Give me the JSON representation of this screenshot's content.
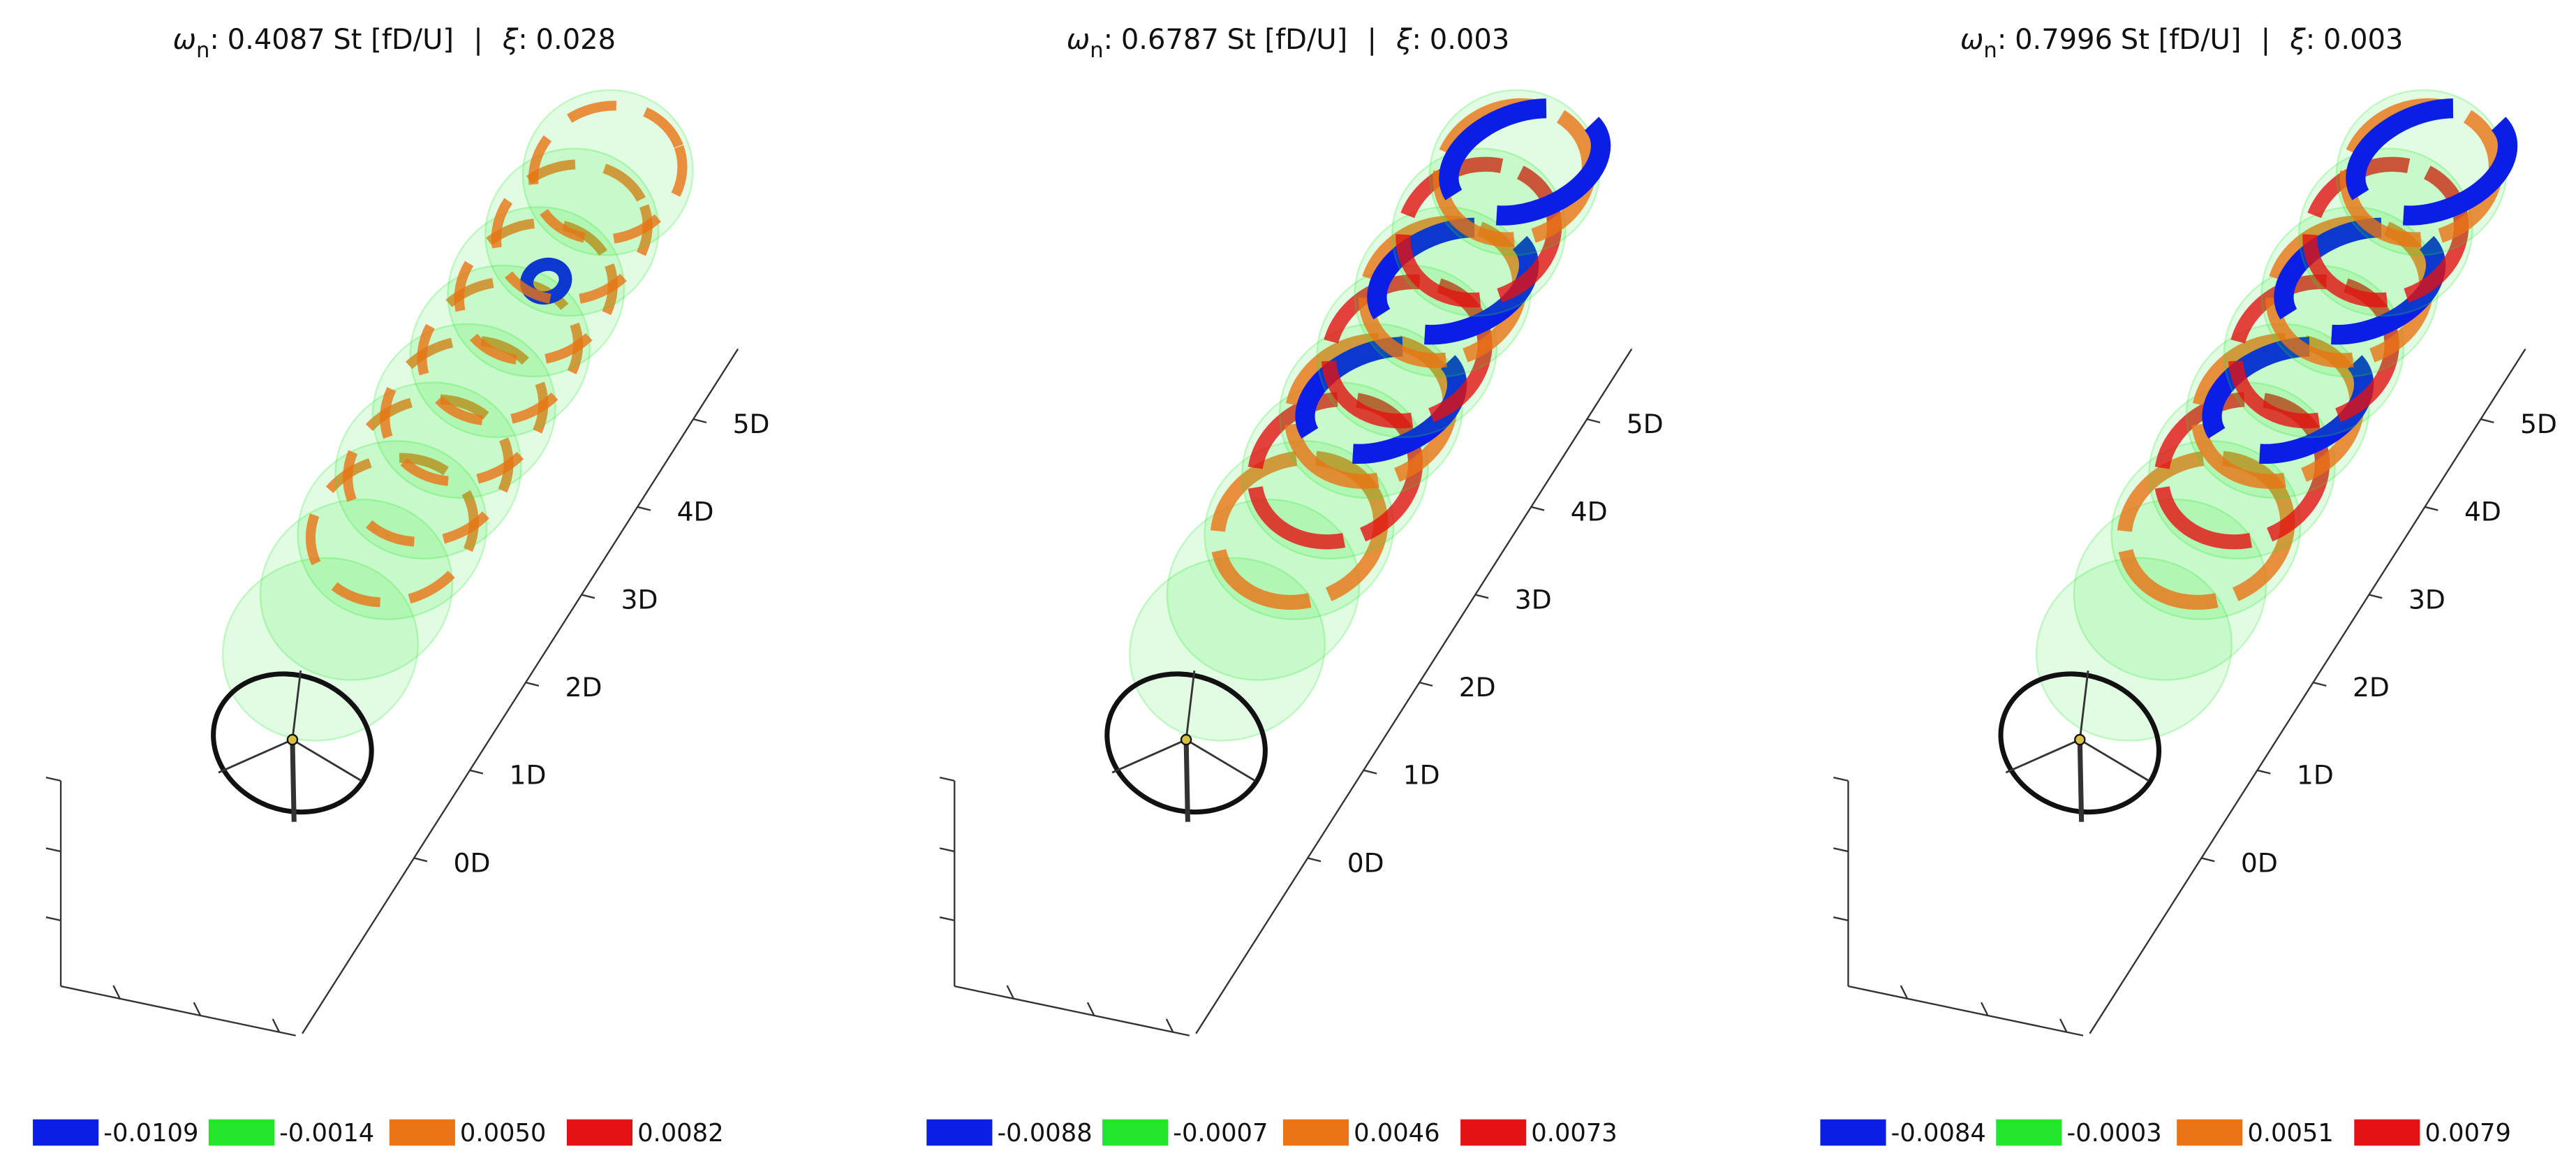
{
  "chart_data": [
    {
      "type": "isosurface",
      "frequency_symbol": "ω",
      "frequency_subscript": "n",
      "colon": ":",
      "frequency": 0.4087,
      "frequency_unit": "St [fD/U]",
      "separator": "|",
      "damping_symbol": "ξ",
      "damping": 0.028,
      "xlim": [
        -2,
        5.8
      ],
      "xticks": [
        {
          "value": 0,
          "label": "0D"
        },
        {
          "value": 1,
          "label": "1D"
        },
        {
          "value": 2,
          "label": "2D"
        },
        {
          "value": 3,
          "label": "3D"
        },
        {
          "value": 4,
          "label": "4D"
        },
        {
          "value": 5,
          "label": "5D"
        }
      ],
      "levels": [
        -0.0109,
        -0.0014,
        0.005,
        0.0082
      ],
      "level_labels": [
        "-0.0109",
        "-0.0014",
        "0.0050",
        "0.0082"
      ],
      "level_colors": [
        "#0a1ee6",
        "#22e62a",
        "#ea7314",
        "#e41212"
      ]
    },
    {
      "type": "isosurface",
      "frequency_symbol": "ω",
      "frequency_subscript": "n",
      "colon": ":",
      "frequency": 0.6787,
      "frequency_unit": "St [fD/U]",
      "separator": "|",
      "damping_symbol": "ξ",
      "damping": 0.003,
      "xlim": [
        -2,
        5.8
      ],
      "xticks": [
        {
          "value": 0,
          "label": "0D"
        },
        {
          "value": 1,
          "label": "1D"
        },
        {
          "value": 2,
          "label": "2D"
        },
        {
          "value": 3,
          "label": "3D"
        },
        {
          "value": 4,
          "label": "4D"
        },
        {
          "value": 5,
          "label": "5D"
        }
      ],
      "levels": [
        -0.0088,
        -0.0007,
        0.0046,
        0.0073
      ],
      "level_labels": [
        "-0.0088",
        "-0.0007",
        "0.0046",
        "0.0073"
      ],
      "level_colors": [
        "#0a1ee6",
        "#22e62a",
        "#ea7314",
        "#e41212"
      ]
    },
    {
      "type": "isosurface",
      "frequency_symbol": "ω",
      "frequency_subscript": "n",
      "colon": ":",
      "frequency": 0.7996,
      "frequency_unit": "St [fD/U]",
      "separator": "|",
      "damping_symbol": "ξ",
      "damping": 0.003,
      "xlim": [
        -2,
        5.8
      ],
      "xticks": [
        {
          "value": 0,
          "label": "0D"
        },
        {
          "value": 1,
          "label": "1D"
        },
        {
          "value": 2,
          "label": "2D"
        },
        {
          "value": 3,
          "label": "3D"
        },
        {
          "value": 4,
          "label": "4D"
        },
        {
          "value": 5,
          "label": "5D"
        }
      ],
      "levels": [
        -0.0084,
        -0.0003,
        0.0051,
        0.0079
      ],
      "level_labels": [
        "-0.0084",
        "-0.0003",
        "0.0051",
        "0.0079"
      ],
      "level_colors": [
        "#0a1ee6",
        "#22e62a",
        "#ea7314",
        "#e41212"
      ]
    }
  ]
}
